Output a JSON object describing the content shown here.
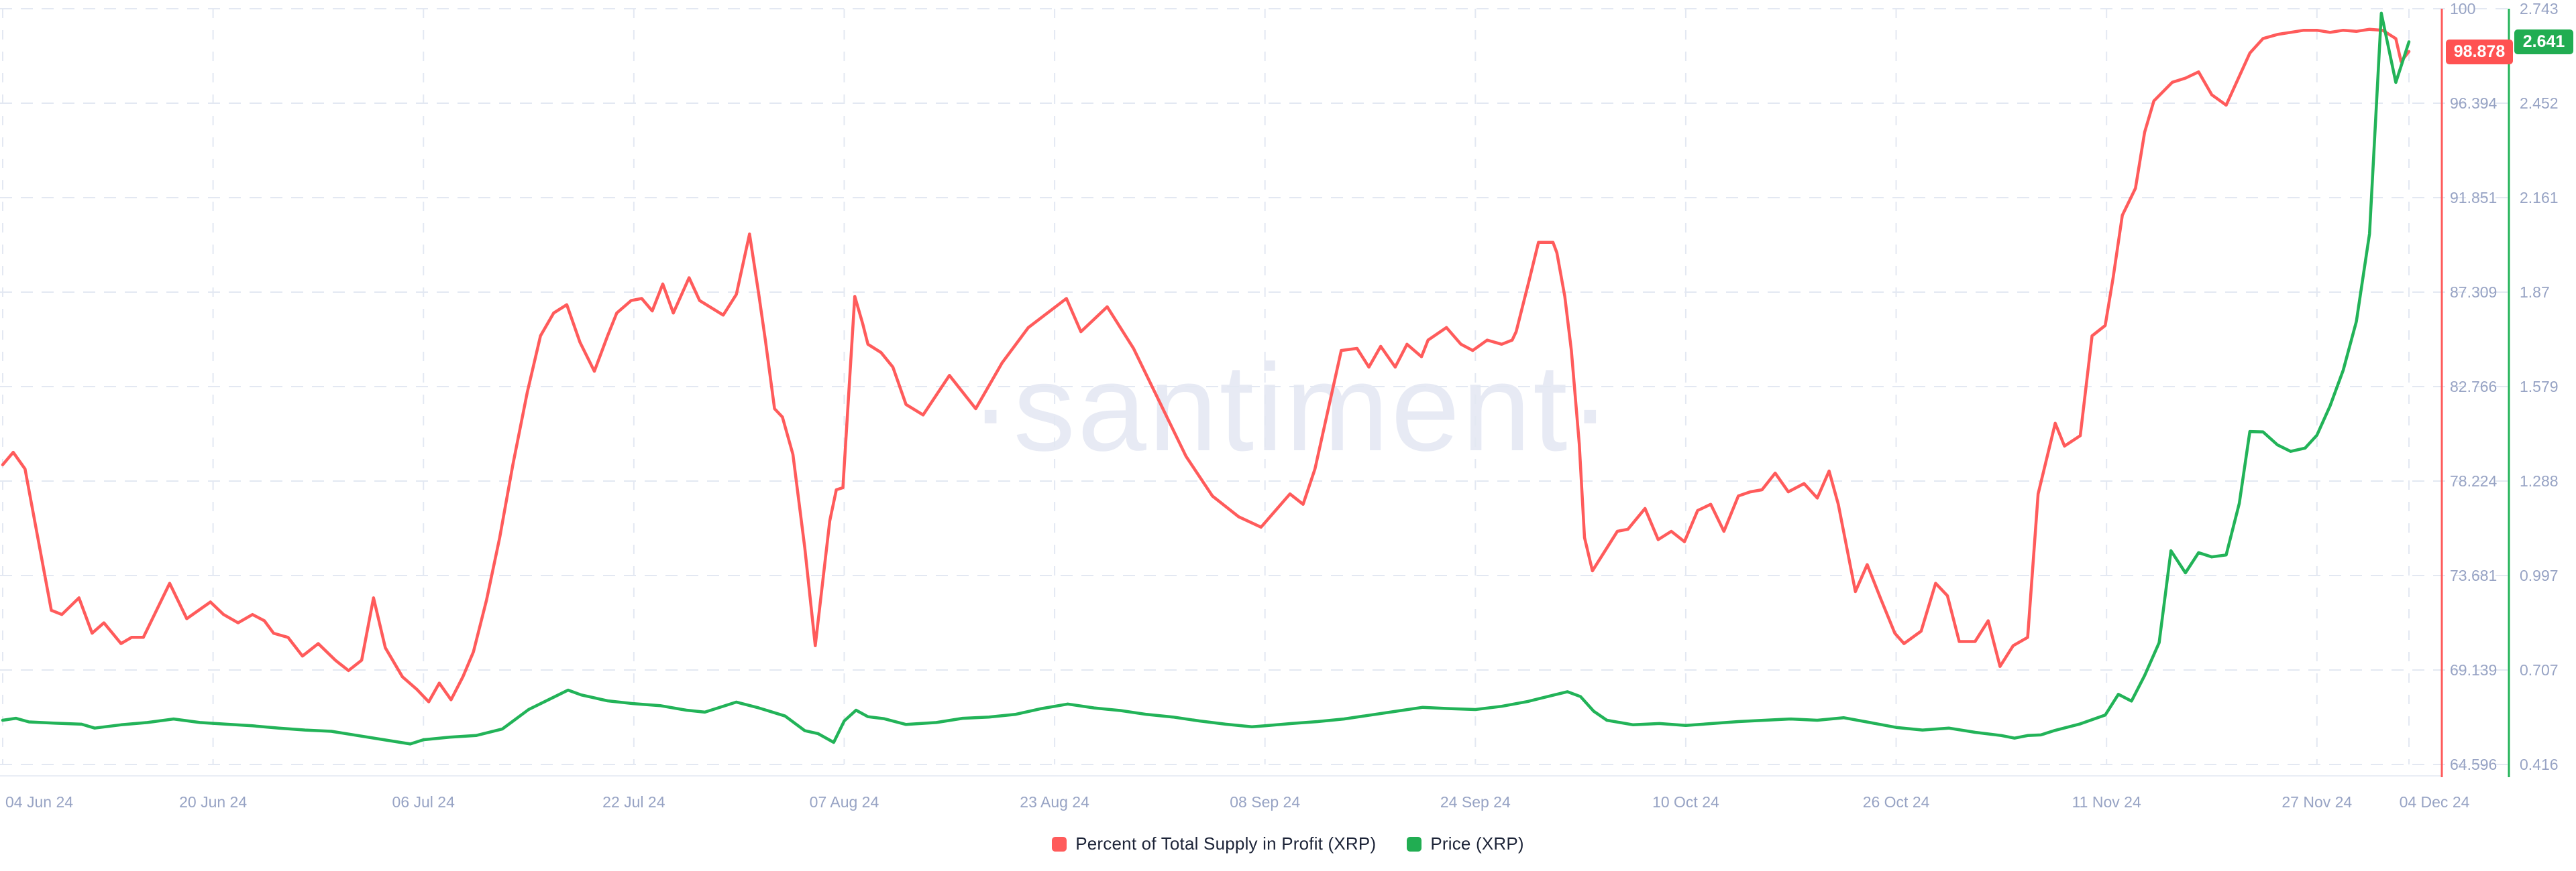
{
  "watermark": "·santiment·",
  "legend": {
    "items": [
      {
        "label": "Percent of Total Supply in Profit (XRP)",
        "color": "#ff5b5b"
      },
      {
        "label": "Price (XRP)",
        "color": "#21ad52"
      }
    ]
  },
  "badges": {
    "percent_current": "98.878",
    "price_current": "2.641",
    "percent_color": "#ff5252",
    "price_color": "#21ad52"
  },
  "colors": {
    "percent_series": "#ff5b5b",
    "price_series": "#22b358",
    "axis_text": "#97a3c4",
    "grid": "#e3e8f2",
    "baseline": "#e9edf5",
    "watermark": "#e7eaf4",
    "legend_text": "#1d2438"
  },
  "chart_data": {
    "type": "line",
    "watermark": "·santiment·",
    "grid": "dashed",
    "legend_position": "bottom-center",
    "x_axis": {
      "ticks": [
        {
          "label": "04 Jun 24",
          "day": 0
        },
        {
          "label": "20 Jun 24",
          "day": 16
        },
        {
          "label": "06 Jul 24",
          "day": 32
        },
        {
          "label": "22 Jul 24",
          "day": 48
        },
        {
          "label": "07 Aug 24",
          "day": 64
        },
        {
          "label": "23 Aug 24",
          "day": 80
        },
        {
          "label": "08 Sep 24",
          "day": 96
        },
        {
          "label": "24 Sep 24",
          "day": 112
        },
        {
          "label": "10 Oct 24",
          "day": 128
        },
        {
          "label": "26 Oct 24",
          "day": 144
        },
        {
          "label": "11 Nov 24",
          "day": 160
        },
        {
          "label": "27 Nov 24",
          "day": 176
        },
        {
          "label": "04 Dec 24",
          "day": 183
        }
      ]
    },
    "y_axis_percent": {
      "side": "right-inner",
      "tick_labels": [
        "100",
        "96.394",
        "91.851",
        "87.309",
        "82.766",
        "78.224",
        "73.681",
        "69.139",
        "64.596"
      ],
      "ylim": [
        64.596,
        100
      ],
      "current_value": 98.878
    },
    "y_axis_price": {
      "side": "right-outer",
      "tick_labels": [
        "2.743",
        "2.452",
        "2.161",
        "1.87",
        "1.579",
        "1.288",
        "0.997",
        "0.707",
        "0.416"
      ],
      "ylim": [
        0.416,
        2.743
      ],
      "current_value": 2.641
    },
    "series": [
      {
        "name": "Percent of Total Supply in Profit (XRP)",
        "axis": "percent",
        "color": "#ff5b5b",
        "points": [
          [
            0,
            79.0
          ],
          [
            0.8,
            79.6
          ],
          [
            1.7,
            78.8
          ],
          [
            3.7,
            72.0
          ],
          [
            4.5,
            71.8
          ],
          [
            5.8,
            72.6
          ],
          [
            6.8,
            70.9
          ],
          [
            7.7,
            71.4
          ],
          [
            9,
            70.4
          ],
          [
            9.8,
            70.7
          ],
          [
            10.7,
            70.7
          ],
          [
            12.7,
            73.3
          ],
          [
            14,
            71.6
          ],
          [
            15.8,
            72.4
          ],
          [
            16.8,
            71.8
          ],
          [
            17.9,
            71.4
          ],
          [
            19,
            71.8
          ],
          [
            19.9,
            71.5
          ],
          [
            20.6,
            70.9
          ],
          [
            21.7,
            70.7
          ],
          [
            22.8,
            69.8
          ],
          [
            24,
            70.4
          ],
          [
            25.3,
            69.6
          ],
          [
            26.3,
            69.1
          ],
          [
            27.3,
            69.6
          ],
          [
            28.2,
            72.6
          ],
          [
            29.1,
            70.2
          ],
          [
            30.4,
            68.8
          ],
          [
            31.5,
            68.2
          ],
          [
            32.4,
            67.6
          ],
          [
            33.2,
            68.5
          ],
          [
            34.1,
            67.7
          ],
          [
            35,
            68.8
          ],
          [
            35.8,
            70.0
          ],
          [
            36.8,
            72.5
          ],
          [
            37.8,
            75.5
          ],
          [
            38.8,
            79.0
          ],
          [
            39.9,
            82.5
          ],
          [
            40.9,
            85.2
          ],
          [
            41.9,
            86.3
          ],
          [
            42.9,
            86.7
          ],
          [
            43.9,
            84.9
          ],
          [
            45,
            83.5
          ],
          [
            46,
            85.2
          ],
          [
            46.7,
            86.3
          ],
          [
            47.8,
            86.9
          ],
          [
            48.6,
            87.0
          ],
          [
            49.4,
            86.4
          ],
          [
            50.2,
            87.7
          ],
          [
            51,
            86.3
          ],
          [
            52.2,
            88.0
          ],
          [
            53,
            86.9
          ],
          [
            54.8,
            86.2
          ],
          [
            55.8,
            87.2
          ],
          [
            56.8,
            90.1
          ],
          [
            57.5,
            87.2
          ],
          [
            58,
            85.0
          ],
          [
            58.7,
            81.7
          ],
          [
            59.3,
            81.3
          ],
          [
            60.1,
            79.5
          ],
          [
            61,
            75.0
          ],
          [
            61.8,
            70.3
          ],
          [
            62.9,
            76.3
          ],
          [
            63.4,
            77.8
          ],
          [
            63.9,
            77.9
          ],
          [
            64.8,
            87.1
          ],
          [
            65.4,
            85.8
          ],
          [
            65.8,
            84.8
          ],
          [
            66.8,
            84.4
          ],
          [
            67.7,
            83.7
          ],
          [
            68.7,
            81.9
          ],
          [
            70,
            81.4
          ],
          [
            72,
            83.3
          ],
          [
            74,
            81.7
          ],
          [
            76,
            83.9
          ],
          [
            78,
            85.6
          ],
          [
            80.9,
            87.0
          ],
          [
            82,
            85.4
          ],
          [
            84,
            86.6
          ],
          [
            86,
            84.6
          ],
          [
            88,
            82.0
          ],
          [
            90,
            79.4
          ],
          [
            92,
            77.5
          ],
          [
            94,
            76.5
          ],
          [
            95.7,
            76.0
          ],
          [
            97.9,
            77.6
          ],
          [
            98.9,
            77.1
          ],
          [
            99.8,
            78.8
          ],
          [
            101.8,
            84.5
          ],
          [
            103,
            84.6
          ],
          [
            103.9,
            83.7
          ],
          [
            104.8,
            84.7
          ],
          [
            105.9,
            83.7
          ],
          [
            106.8,
            84.8
          ],
          [
            107.9,
            84.2
          ],
          [
            108.4,
            85.0
          ],
          [
            109.8,
            85.6
          ],
          [
            110.9,
            84.8
          ],
          [
            111.8,
            84.5
          ],
          [
            112.9,
            85.0
          ],
          [
            114,
            84.8
          ],
          [
            114.8,
            85.0
          ],
          [
            115.1,
            85.4
          ],
          [
            116.1,
            87.9
          ],
          [
            116.8,
            89.7
          ],
          [
            117.9,
            89.7
          ],
          [
            118.2,
            89.2
          ],
          [
            118.8,
            87.1
          ],
          [
            119.3,
            84.5
          ],
          [
            119.9,
            80.0
          ],
          [
            120.3,
            75.5
          ],
          [
            120.9,
            73.9
          ],
          [
            122.8,
            75.8
          ],
          [
            123.6,
            75.9
          ],
          [
            124.9,
            76.9
          ],
          [
            125.9,
            75.4
          ],
          [
            126.9,
            75.8
          ],
          [
            127.9,
            75.3
          ],
          [
            128.9,
            76.8
          ],
          [
            129.9,
            77.1
          ],
          [
            130.9,
            75.8
          ],
          [
            132,
            77.5
          ],
          [
            132.9,
            77.7
          ],
          [
            133.8,
            77.8
          ],
          [
            134.8,
            78.6
          ],
          [
            135.8,
            77.7
          ],
          [
            137,
            78.1
          ],
          [
            138,
            77.4
          ],
          [
            138.9,
            78.7
          ],
          [
            139.6,
            77.1
          ],
          [
            140.9,
            72.9
          ],
          [
            141.8,
            74.2
          ],
          [
            142.8,
            72.6
          ],
          [
            143.9,
            70.9
          ],
          [
            144.6,
            70.4
          ],
          [
            145.9,
            71.0
          ],
          [
            147,
            73.3
          ],
          [
            147.9,
            72.7
          ],
          [
            148.8,
            70.5
          ],
          [
            150,
            70.5
          ],
          [
            151,
            71.5
          ],
          [
            151.9,
            69.3
          ],
          [
            152.9,
            70.3
          ],
          [
            154,
            70.7
          ],
          [
            154.8,
            77.6
          ],
          [
            156.1,
            81.0
          ],
          [
            156.8,
            79.9
          ],
          [
            158,
            80.4
          ],
          [
            158.9,
            85.2
          ],
          [
            159.9,
            85.7
          ],
          [
            160.5,
            88.0
          ],
          [
            161.2,
            91.0
          ],
          [
            162.2,
            92.3
          ],
          [
            162.9,
            95.0
          ],
          [
            163.6,
            96.5
          ],
          [
            165,
            97.4
          ],
          [
            166,
            97.6
          ],
          [
            167,
            97.9
          ],
          [
            168,
            96.8
          ],
          [
            169.1,
            96.3
          ],
          [
            170.9,
            98.8
          ],
          [
            171.9,
            99.5
          ],
          [
            173,
            99.7
          ],
          [
            174,
            99.8
          ],
          [
            175,
            99.9
          ],
          [
            176,
            99.9
          ],
          [
            177,
            99.8
          ],
          [
            178,
            99.9
          ],
          [
            179,
            99.85
          ],
          [
            180,
            99.95
          ],
          [
            181,
            99.9
          ],
          [
            182,
            99.5
          ],
          [
            182.4,
            98.4
          ],
          [
            183,
            98.878
          ]
        ]
      },
      {
        "name": "Price (XRP)",
        "axis": "price",
        "color": "#22b358",
        "points": [
          [
            0,
            0.552
          ],
          [
            1,
            0.558
          ],
          [
            2,
            0.547
          ],
          [
            4,
            0.543
          ],
          [
            6,
            0.54
          ],
          [
            7,
            0.528
          ],
          [
            9,
            0.538
          ],
          [
            11,
            0.545
          ],
          [
            13,
            0.556
          ],
          [
            15,
            0.545
          ],
          [
            17,
            0.54
          ],
          [
            19,
            0.535
          ],
          [
            21,
            0.528
          ],
          [
            23,
            0.522
          ],
          [
            25,
            0.518
          ],
          [
            27,
            0.505
          ],
          [
            29,
            0.492
          ],
          [
            31,
            0.479
          ],
          [
            32,
            0.492
          ],
          [
            34,
            0.5
          ],
          [
            36,
            0.505
          ],
          [
            38,
            0.525
          ],
          [
            40,
            0.585
          ],
          [
            42,
            0.625
          ],
          [
            43,
            0.645
          ],
          [
            44,
            0.63
          ],
          [
            46,
            0.612
          ],
          [
            48,
            0.603
          ],
          [
            50,
            0.597
          ],
          [
            52,
            0.583
          ],
          [
            53.4,
            0.577
          ],
          [
            55.8,
            0.608
          ],
          [
            57.5,
            0.59
          ],
          [
            59.5,
            0.565
          ],
          [
            61,
            0.52
          ],
          [
            62,
            0.511
          ],
          [
            63.2,
            0.484
          ],
          [
            64,
            0.55
          ],
          [
            64.9,
            0.583
          ],
          [
            65.8,
            0.563
          ],
          [
            67,
            0.557
          ],
          [
            68.7,
            0.539
          ],
          [
            71,
            0.545
          ],
          [
            73,
            0.558
          ],
          [
            75,
            0.562
          ],
          [
            77,
            0.57
          ],
          [
            79,
            0.588
          ],
          [
            81,
            0.602
          ],
          [
            83,
            0.59
          ],
          [
            85,
            0.582
          ],
          [
            87,
            0.57
          ],
          [
            89,
            0.562
          ],
          [
            91,
            0.55
          ],
          [
            93,
            0.54
          ],
          [
            95,
            0.532
          ],
          [
            96,
            0.535
          ],
          [
            98,
            0.542
          ],
          [
            100,
            0.548
          ],
          [
            102,
            0.556
          ],
          [
            104,
            0.568
          ],
          [
            106,
            0.58
          ],
          [
            108,
            0.592
          ],
          [
            110,
            0.588
          ],
          [
            112,
            0.585
          ],
          [
            114,
            0.595
          ],
          [
            116,
            0.61
          ],
          [
            118,
            0.63
          ],
          [
            119,
            0.64
          ],
          [
            120,
            0.625
          ],
          [
            121,
            0.58
          ],
          [
            122,
            0.552
          ],
          [
            124,
            0.538
          ],
          [
            126,
            0.542
          ],
          [
            128,
            0.536
          ],
          [
            130,
            0.542
          ],
          [
            132,
            0.548
          ],
          [
            134,
            0.552
          ],
          [
            136,
            0.556
          ],
          [
            138,
            0.552
          ],
          [
            140,
            0.56
          ],
          [
            142,
            0.545
          ],
          [
            144,
            0.53
          ],
          [
            146,
            0.522
          ],
          [
            148,
            0.528
          ],
          [
            150,
            0.515
          ],
          [
            152,
            0.505
          ],
          [
            153,
            0.497
          ],
          [
            154,
            0.505
          ],
          [
            155,
            0.507
          ],
          [
            156,
            0.52
          ],
          [
            158,
            0.541
          ],
          [
            159.9,
            0.568
          ],
          [
            160.9,
            0.632
          ],
          [
            161.9,
            0.611
          ],
          [
            162.9,
            0.69
          ],
          [
            164,
            0.791
          ],
          [
            164.9,
            1.074
          ],
          [
            166,
            1.006
          ],
          [
            167,
            1.068
          ],
          [
            168,
            1.055
          ],
          [
            169.1,
            1.061
          ],
          [
            170.1,
            1.22
          ],
          [
            170.9,
            1.441
          ],
          [
            171.9,
            1.44
          ],
          [
            173,
            1.4
          ],
          [
            174,
            1.38
          ],
          [
            175.1,
            1.39
          ],
          [
            176,
            1.43
          ],
          [
            177,
            1.52
          ],
          [
            178,
            1.63
          ],
          [
            179,
            1.78
          ],
          [
            180,
            2.05
          ],
          [
            180.9,
            2.729
          ],
          [
            182,
            2.516
          ],
          [
            183,
            2.641
          ]
        ]
      }
    ]
  }
}
